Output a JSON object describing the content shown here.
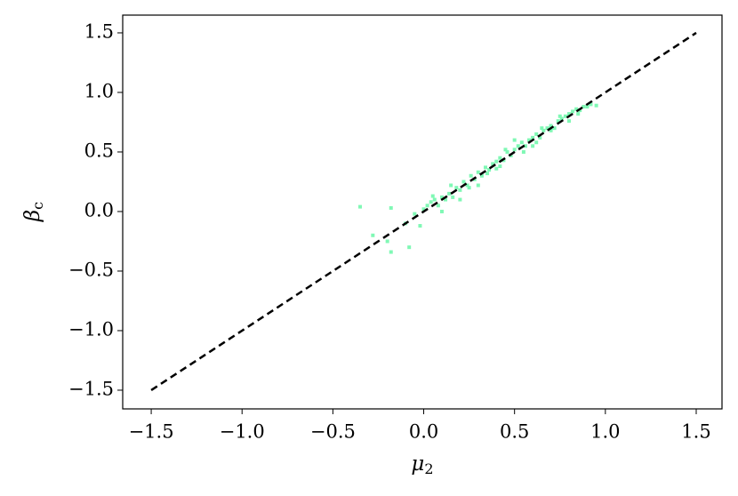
{
  "chart_data": {
    "type": "scatter",
    "x_label": {
      "symbol": "μ",
      "subscript": "2"
    },
    "y_label": {
      "symbol": "β",
      "subscript": "c"
    },
    "xlim": [
      -1.657,
      1.642
    ],
    "ylim": [
      -1.657,
      1.649
    ],
    "xticks": [
      {
        "value": -1.5,
        "label": "−1.5"
      },
      {
        "value": -1.0,
        "label": "−1.0"
      },
      {
        "value": -0.5,
        "label": "−0.5"
      },
      {
        "value": 0,
        "label": "0.0"
      },
      0.5,
      {
        "value": 1.0,
        "label": "1.0"
      },
      1.5
    ],
    "yticks": [
      {
        "value": -1.5,
        "label": "−1.5"
      },
      {
        "value": -1.0,
        "label": "−1.0"
      },
      {
        "value": -0.5,
        "label": "−0.5"
      },
      {
        "value": 0,
        "label": "0.0"
      },
      0.5,
      {
        "value": 1.0,
        "label": "1.0"
      },
      1.5
    ],
    "grid": false,
    "reference_line": {
      "x": [
        -1.5,
        1.5
      ],
      "y": [
        -1.5,
        1.5
      ],
      "color": "#000000",
      "dashed": true
    },
    "series": [
      {
        "color": "#80f8b5",
        "x": [
          -0.35,
          -0.18,
          -0.28,
          -0.2,
          -0.18,
          -0.08,
          -0.1,
          -0.05,
          -0.02,
          0.0,
          0.02,
          0.04,
          0.06,
          0.08,
          0.1,
          0.12,
          0.14,
          0.16,
          0.18,
          0.2,
          0.22,
          0.24,
          0.26,
          0.28,
          0.3,
          0.32,
          0.34,
          0.36,
          0.38,
          0.4,
          0.42,
          0.44,
          0.46,
          0.48,
          0.5,
          0.52,
          0.54,
          0.56,
          0.58,
          0.6,
          0.62,
          0.64,
          0.66,
          0.68,
          0.7,
          0.72,
          0.74,
          0.76,
          0.78,
          0.8,
          0.82,
          0.84,
          0.86,
          0.88,
          0.9,
          0.92,
          0.95,
          0.05,
          0.15,
          0.25,
          0.35,
          0.45,
          0.55,
          0.65,
          0.75,
          0.85,
          0.3,
          0.4,
          0.5,
          0.6,
          0.7,
          0.8,
          0.1,
          0.2,
          0.42,
          0.62
        ],
        "values": [
          0.04,
          0.03,
          -0.2,
          -0.25,
          -0.34,
          -0.3,
          -0.1,
          -0.02,
          -0.12,
          0.02,
          0.05,
          0.08,
          0.1,
          0.05,
          0.12,
          0.1,
          0.15,
          0.12,
          0.2,
          0.18,
          0.25,
          0.22,
          0.3,
          0.27,
          0.33,
          0.3,
          0.37,
          0.35,
          0.4,
          0.42,
          0.45,
          0.43,
          0.5,
          0.47,
          0.52,
          0.55,
          0.58,
          0.55,
          0.6,
          0.62,
          0.65,
          0.62,
          0.68,
          0.7,
          0.72,
          0.7,
          0.76,
          0.78,
          0.8,
          0.82,
          0.84,
          0.86,
          0.85,
          0.88,
          0.88,
          0.9,
          0.89,
          0.13,
          0.22,
          0.2,
          0.32,
          0.52,
          0.5,
          0.7,
          0.8,
          0.82,
          0.22,
          0.36,
          0.6,
          0.55,
          0.68,
          0.76,
          0.0,
          0.1,
          0.38,
          0.58
        ]
      }
    ]
  }
}
